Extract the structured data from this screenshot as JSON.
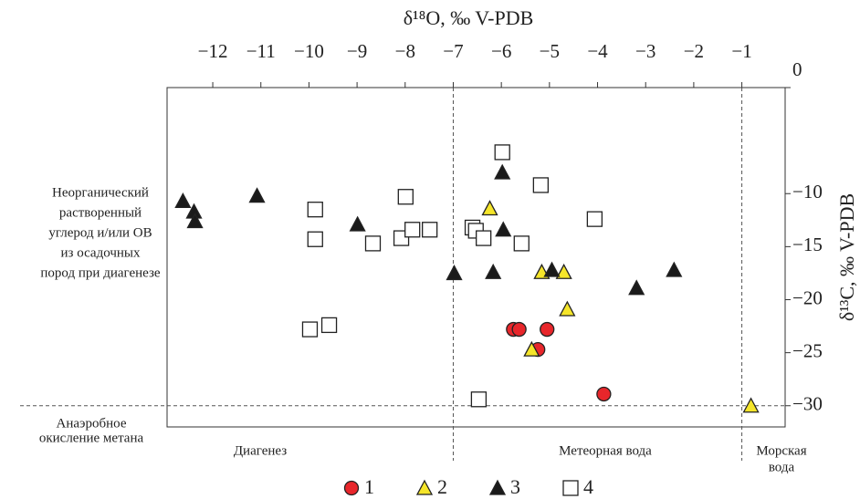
{
  "chart_data": {
    "type": "scatter",
    "title": "δ¹⁸O, ‰ V-PDB",
    "y_label": "δ¹³C, ‰ V-PDB",
    "xlim": [
      -12.95,
      -0.1
    ],
    "ylim": [
      -32,
      0
    ],
    "xticks": [
      {
        "value": -12,
        "label": "−12"
      },
      {
        "value": -11,
        "label": "−11"
      },
      {
        "value": -10,
        "label": "−10"
      },
      {
        "value": -9,
        "label": "−9"
      },
      {
        "value": -8,
        "label": "−8"
      },
      {
        "value": -7,
        "label": "−7"
      },
      {
        "value": -6,
        "label": "−6"
      },
      {
        "value": -5,
        "label": "−5"
      },
      {
        "value": -4,
        "label": "−4"
      },
      {
        "value": -3,
        "label": "−3"
      },
      {
        "value": -2,
        "label": "−2"
      },
      {
        "value": -1,
        "label": "−1"
      }
    ],
    "yticks": [
      0,
      {
        "value": -10,
        "label": "−10"
      },
      {
        "value": -15,
        "label": "−15"
      },
      {
        "value": -20,
        "label": "−20"
      },
      {
        "value": -25,
        "label": "−25"
      },
      {
        "value": -30,
        "label": "−30"
      }
    ],
    "vlines": [
      -7,
      -1
    ],
    "hlines": [
      -30
    ],
    "annotations": {
      "inorganic": [
        "Неорганический",
        "растворенный",
        "углерод и/или ОВ",
        "из осадочных",
        "пород при диагенезе"
      ],
      "methane": [
        "Анаэробное",
        "окисление метана"
      ],
      "diagenesis": "Диагенез",
      "meteoric": "Метеорная вода",
      "marine": [
        "Морская",
        "вода"
      ]
    },
    "series": [
      {
        "name": "1",
        "marker": "circle",
        "color": "#e8262b",
        "x": [
          -5.75,
          -5.63,
          -5.05,
          -5.24,
          -3.87
        ],
        "values": [
          -22.8,
          -22.8,
          -22.8,
          -24.7,
          -28.9
        ]
      },
      {
        "name": "2",
        "marker": "triangle",
        "color": "#f5e52a",
        "x": [
          -6.24,
          -5.16,
          -4.7,
          -4.63,
          -5.37,
          -0.81
        ],
        "values": [
          -11.4,
          -17.4,
          -17.4,
          -20.9,
          -24.7,
          -30.0
        ]
      },
      {
        "name": "3",
        "marker": "triangle",
        "color": "#1a1a1a",
        "x": [
          -12.62,
          -12.39,
          -12.37,
          -11.08,
          -8.99,
          -6.98,
          -5.98,
          -5.96,
          -6.17,
          -4.95,
          -3.19,
          -2.41
        ],
        "values": [
          -10.7,
          -11.7,
          -12.6,
          -10.2,
          -12.9,
          -17.5,
          -8.0,
          -13.4,
          -17.4,
          -17.2,
          -18.9,
          -17.2
        ]
      },
      {
        "name": "4",
        "marker": "square",
        "color": "#ffffff",
        "x": [
          -5.98,
          -7.99,
          -5.18,
          -9.87,
          -9.87,
          -8.67,
          -8.08,
          -7.85,
          -7.49,
          -6.6,
          -6.53,
          -6.37,
          -5.58,
          -4.06,
          -9.98,
          -9.58,
          -6.47
        ],
        "values": [
          -6.1,
          -10.3,
          -9.2,
          -11.5,
          -14.3,
          -14.7,
          -14.2,
          -13.4,
          -13.4,
          -13.2,
          -13.5,
          -14.2,
          -14.7,
          -12.4,
          -22.8,
          -22.4,
          -29.4
        ]
      }
    ]
  }
}
